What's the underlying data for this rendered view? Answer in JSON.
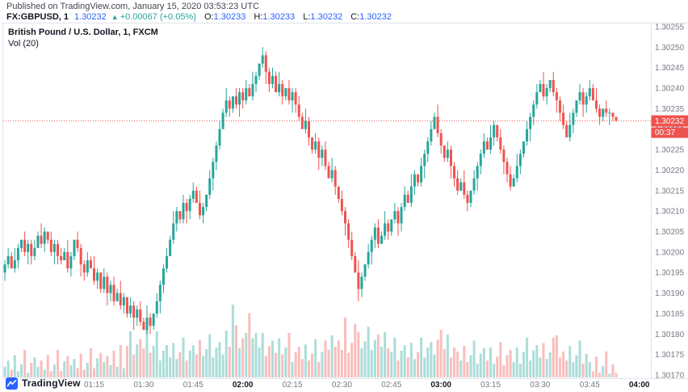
{
  "header": {
    "published": "Published on TradingView.com, January 15, 2020 03:53:23 UTC",
    "symbol": "FX:GBPUSD, 1",
    "last_price": "1.30232",
    "direction_arrow": "▲",
    "change": "+0.00067 (+0.05%)",
    "ohlc": [
      {
        "label": "O:",
        "value": "1.30233"
      },
      {
        "label": "H:",
        "value": "1.30233"
      },
      {
        "label": "L:",
        "value": "1.30232"
      },
      {
        "label": "C:",
        "value": "1.30232"
      }
    ]
  },
  "legend": {
    "title": "British Pound / U.S. Dollar, 1, FXCM",
    "indicator": "Vol (20)"
  },
  "footer": {
    "brand": "TradingView"
  },
  "colors": {
    "up": "#26a69a",
    "down": "#ef5350",
    "accent_blue": "#2962ff",
    "last_price_bg": "#ef5350",
    "axis_text": "#787b86",
    "text_dark": "#131722",
    "border": "#e0e3eb"
  },
  "chart_data": {
    "type": "candlestick+volume",
    "title": "British Pound / U.S. Dollar, 1, FXCM",
    "symbol": "GBPUSD",
    "interval": "1",
    "start_time": "00:48",
    "interval_min": 1,
    "price_base": 1.3,
    "price_unit": 1e-05,
    "note": "candles = [open,high,low,close,volume]; price = price_base + value*price_unit",
    "last_price": 1.30232,
    "last_price_label": "1.30232",
    "countdown": "00:37",
    "y_axis": {
      "min": 1.3017,
      "max": 1.30255,
      "step": 5e-05,
      "ticks": [
        "1.30255",
        "1.30250",
        "1.30245",
        "1.30240",
        "1.30235",
        "1.30230",
        "1.30225",
        "1.30220",
        "1.30215",
        "1.30210",
        "1.30205",
        "1.30200",
        "1.30195",
        "1.30190",
        "1.30185",
        "1.30180",
        "1.30175",
        "1.30170"
      ]
    },
    "x_ticks": [
      {
        "label": "01:15",
        "major": false
      },
      {
        "label": "01:30",
        "major": false
      },
      {
        "label": "01:45",
        "major": false
      },
      {
        "label": "02:00",
        "major": true
      },
      {
        "label": "02:15",
        "major": false
      },
      {
        "label": "02:30",
        "major": false
      },
      {
        "label": "02:45",
        "major": false
      },
      {
        "label": "03:00",
        "major": true
      },
      {
        "label": "03:15",
        "major": false
      },
      {
        "label": "03:30",
        "major": false
      },
      {
        "label": "03:45",
        "major": false
      },
      {
        "label": "04:00",
        "major": true
      }
    ],
    "candles": [
      [
        195,
        198,
        193,
        197,
        14
      ],
      [
        197,
        201,
        196,
        199,
        22
      ],
      [
        199,
        200,
        196,
        196,
        10
      ],
      [
        196,
        201,
        195,
        198,
        29
      ],
      [
        198,
        202,
        196,
        201,
        8
      ],
      [
        201,
        203,
        200,
        203,
        17
      ],
      [
        203,
        205,
        199,
        200,
        36
      ],
      [
        200,
        203,
        197,
        202,
        6
      ],
      [
        202,
        203,
        197,
        199,
        19
      ],
      [
        199,
        203,
        198,
        201,
        26
      ],
      [
        201,
        205,
        201,
        204,
        14
      ],
      [
        204,
        207,
        201,
        202,
        22
      ],
      [
        202,
        206,
        200,
        205,
        10
      ],
      [
        205,
        205,
        202,
        203,
        29
      ],
      [
        203,
        205,
        199,
        200,
        8
      ],
      [
        200,
        203,
        197,
        202,
        17
      ],
      [
        202,
        203,
        197,
        199,
        36
      ],
      [
        199,
        201,
        197,
        198,
        8
      ],
      [
        198,
        201,
        198,
        200,
        21
      ],
      [
        200,
        203,
        195,
        196,
        28
      ],
      [
        196,
        200,
        194,
        199,
        16
      ],
      [
        199,
        203,
        198,
        203,
        24
      ],
      [
        203,
        205,
        200,
        201,
        12
      ],
      [
        201,
        202,
        194,
        197,
        31
      ],
      [
        197,
        198,
        193,
        195,
        10
      ],
      [
        195,
        200,
        194,
        198,
        19
      ],
      [
        198,
        199,
        196,
        196,
        38
      ],
      [
        196,
        199,
        192,
        193,
        12
      ],
      [
        193,
        196,
        191,
        195,
        25
      ],
      [
        195,
        195,
        190,
        191,
        32
      ],
      [
        191,
        196,
        190,
        194,
        20
      ],
      [
        194,
        195,
        187,
        190,
        28
      ],
      [
        190,
        193,
        188,
        192,
        16
      ],
      [
        192,
        194,
        187,
        188,
        35
      ],
      [
        188,
        191,
        188,
        190,
        14
      ],
      [
        190,
        193,
        186,
        187,
        42
      ],
      [
        187,
        190,
        185,
        189,
        12
      ],
      [
        189,
        189,
        184,
        185,
        41
      ],
      [
        185,
        189,
        184,
        187,
        60
      ],
      [
        187,
        188,
        181,
        184,
        30
      ],
      [
        184,
        187,
        182,
        186,
        43
      ],
      [
        186,
        188,
        182,
        183,
        50
      ],
      [
        183,
        184,
        181,
        181,
        38
      ],
      [
        181,
        187,
        180,
        184,
        72
      ],
      [
        184,
        185,
        180,
        182,
        32
      ],
      [
        182,
        185,
        181,
        185,
        41
      ],
      [
        185,
        190,
        184,
        188,
        60
      ],
      [
        188,
        193,
        185,
        192,
        22
      ],
      [
        192,
        197,
        190,
        196,
        35
      ],
      [
        196,
        201,
        195,
        199,
        42
      ],
      [
        199,
        204,
        199,
        203,
        26
      ],
      [
        203,
        210,
        202,
        207,
        45
      ],
      [
        207,
        211,
        205,
        210,
        24
      ],
      [
        210,
        210,
        207,
        208,
        33
      ],
      [
        208,
        214,
        207,
        212,
        52
      ],
      [
        212,
        213,
        207,
        210,
        22
      ],
      [
        210,
        214,
        208,
        213,
        35
      ],
      [
        213,
        217,
        212,
        215,
        42
      ],
      [
        215,
        216,
        212,
        212,
        30
      ],
      [
        212,
        215,
        208,
        209,
        49
      ],
      [
        209,
        212,
        207,
        211,
        28
      ],
      [
        211,
        214,
        210,
        214,
        37
      ],
      [
        214,
        220,
        213,
        218,
        56
      ],
      [
        218,
        223,
        215,
        222,
        26
      ],
      [
        222,
        227,
        220,
        226,
        39
      ],
      [
        226,
        232,
        225,
        230,
        46
      ],
      [
        230,
        235,
        230,
        234,
        30
      ],
      [
        234,
        240,
        233,
        237,
        61
      ],
      [
        237,
        238,
        233,
        235,
        40
      ],
      [
        235,
        238,
        234,
        238,
        95
      ],
      [
        238,
        240,
        235,
        236,
        68
      ],
      [
        236,
        240,
        233,
        239,
        38
      ],
      [
        239,
        240,
        235,
        237,
        51
      ],
      [
        237,
        242,
        236,
        240,
        58
      ],
      [
        240,
        241,
        238,
        238,
        84
      ],
      [
        238,
        244,
        237,
        241,
        51
      ],
      [
        241,
        244,
        239,
        243,
        58
      ],
      [
        243,
        246,
        242,
        246,
        39
      ],
      [
        246,
        250,
        245,
        248,
        58
      ],
      [
        248,
        249,
        241,
        244,
        28
      ],
      [
        244,
        245,
        239,
        241,
        41
      ],
      [
        241,
        245,
        240,
        243,
        48
      ],
      [
        243,
        244,
        239,
        239,
        32
      ],
      [
        239,
        244,
        238,
        241,
        51
      ],
      [
        241,
        242,
        236,
        238,
        30
      ],
      [
        238,
        240,
        237,
        240,
        39
      ],
      [
        240,
        242,
        236,
        237,
        58
      ],
      [
        237,
        240,
        234,
        239,
        20
      ],
      [
        239,
        240,
        234,
        236,
        33
      ],
      [
        236,
        238,
        232,
        233,
        40
      ],
      [
        233,
        234,
        230,
        230,
        24
      ],
      [
        230,
        235,
        229,
        232,
        43
      ],
      [
        232,
        233,
        226,
        228,
        22
      ],
      [
        228,
        228,
        224,
        225,
        31
      ],
      [
        225,
        229,
        224,
        227,
        50
      ],
      [
        227,
        228,
        220,
        223,
        20
      ],
      [
        223,
        226,
        221,
        225,
        33
      ],
      [
        225,
        227,
        220,
        221,
        48
      ],
      [
        221,
        222,
        218,
        218,
        36
      ],
      [
        218,
        223,
        217,
        220,
        55
      ],
      [
        220,
        221,
        214,
        216,
        40
      ],
      [
        216,
        216,
        212,
        213,
        48
      ],
      [
        213,
        215,
        209,
        210,
        36
      ],
      [
        210,
        211,
        204,
        207,
        78
      ],
      [
        207,
        208,
        201,
        203,
        32
      ],
      [
        203,
        205,
        198,
        199,
        45
      ],
      [
        199,
        200,
        195,
        195,
        70
      ],
      [
        195,
        198,
        188,
        191,
        59
      ],
      [
        191,
        195,
        189,
        194,
        38
      ],
      [
        194,
        197,
        193,
        197,
        47
      ],
      [
        197,
        202,
        196,
        200,
        66
      ],
      [
        200,
        204,
        197,
        203,
        36
      ],
      [
        203,
        207,
        201,
        206,
        49
      ],
      [
        206,
        208,
        201,
        202,
        56
      ],
      [
        202,
        205,
        202,
        204,
        40
      ],
      [
        204,
        210,
        203,
        207,
        59
      ],
      [
        207,
        208,
        203,
        205,
        38
      ],
      [
        205,
        208,
        204,
        208,
        33
      ],
      [
        208,
        212,
        207,
        210,
        52
      ],
      [
        210,
        211,
        204,
        207,
        22
      ],
      [
        207,
        212,
        205,
        211,
        35
      ],
      [
        211,
        216,
        210,
        214,
        42
      ],
      [
        214,
        215,
        212,
        212,
        26
      ],
      [
        212,
        219,
        211,
        216,
        45
      ],
      [
        216,
        220,
        214,
        219,
        24
      ],
      [
        219,
        219,
        216,
        217,
        33
      ],
      [
        217,
        223,
        216,
        221,
        52
      ],
      [
        221,
        225,
        218,
        224,
        26
      ],
      [
        224,
        228,
        222,
        227,
        39
      ],
      [
        227,
        232,
        226,
        230,
        46
      ],
      [
        230,
        234,
        230,
        233,
        30
      ],
      [
        233,
        236,
        228,
        229,
        49
      ],
      [
        229,
        230,
        224,
        226,
        62
      ],
      [
        226,
        226,
        222,
        223,
        37
      ],
      [
        223,
        227,
        222,
        225,
        56
      ],
      [
        225,
        226,
        218,
        221,
        26
      ],
      [
        221,
        222,
        216,
        218,
        39
      ],
      [
        218,
        220,
        214,
        215,
        34
      ],
      [
        215,
        218,
        215,
        217,
        22
      ],
      [
        217,
        220,
        213,
        214,
        41
      ],
      [
        214,
        215,
        210,
        212,
        20
      ],
      [
        212,
        215,
        211,
        215,
        29
      ],
      [
        215,
        220,
        214,
        218,
        48
      ],
      [
        218,
        222,
        215,
        221,
        18
      ],
      [
        221,
        225,
        219,
        224,
        31
      ],
      [
        224,
        229,
        223,
        227,
        38
      ],
      [
        227,
        228,
        225,
        225,
        22
      ],
      [
        225,
        231,
        224,
        228,
        39
      ],
      [
        228,
        232,
        226,
        231,
        18
      ],
      [
        231,
        231,
        227,
        228,
        27
      ],
      [
        228,
        230,
        224,
        225,
        46
      ],
      [
        225,
        226,
        219,
        222,
        16
      ],
      [
        222,
        223,
        217,
        219,
        29
      ],
      [
        219,
        221,
        215,
        216,
        36
      ],
      [
        216,
        219,
        216,
        218,
        20
      ],
      [
        218,
        224,
        217,
        221,
        39
      ],
      [
        221,
        225,
        219,
        224,
        18
      ],
      [
        224,
        227,
        223,
        227,
        33
      ],
      [
        227,
        232,
        226,
        230,
        52
      ],
      [
        230,
        234,
        227,
        233,
        22
      ],
      [
        233,
        237,
        231,
        236,
        35
      ],
      [
        236,
        241,
        235,
        239,
        42
      ],
      [
        239,
        242,
        239,
        241,
        26
      ],
      [
        241,
        244,
        237,
        238,
        45
      ],
      [
        238,
        241,
        236,
        240,
        24
      ],
      [
        240,
        242,
        239,
        242,
        33
      ],
      [
        242,
        244,
        238,
        239,
        52
      ],
      [
        239,
        240,
        234,
        237,
        55
      ],
      [
        237,
        238,
        232,
        234,
        26
      ],
      [
        234,
        236,
        230,
        231,
        34
      ],
      [
        231,
        232,
        228,
        228,
        22
      ],
      [
        228,
        234,
        227,
        231,
        41
      ],
      [
        231,
        235,
        229,
        234,
        20
      ],
      [
        234,
        237,
        233,
        237,
        29
      ],
      [
        237,
        241,
        236,
        239,
        48
      ],
      [
        239,
        240,
        233,
        236,
        18
      ],
      [
        236,
        239,
        234,
        238,
        31
      ],
      [
        238,
        242,
        237,
        240,
        20
      ],
      [
        240,
        241,
        237,
        237,
        8
      ],
      [
        237,
        240,
        234,
        235,
        27
      ],
      [
        235,
        236,
        231,
        233,
        6
      ],
      [
        233,
        235,
        232,
        235,
        15
      ],
      [
        235,
        237,
        233,
        234,
        34
      ],
      [
        234,
        235,
        231,
        234,
        5
      ],
      [
        234,
        234,
        232,
        233,
        17
      ],
      [
        233,
        233,
        232,
        232,
        6
      ]
    ]
  }
}
